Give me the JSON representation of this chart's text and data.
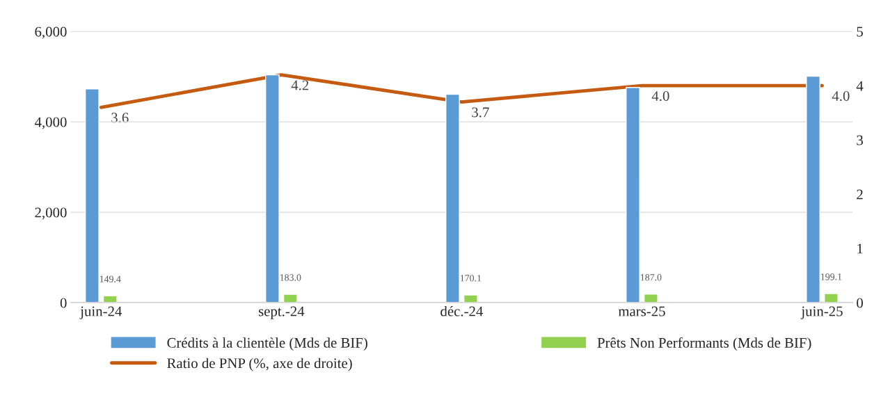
{
  "chart_data": {
    "type": "bar",
    "categories": [
      "juin-24",
      "sept.-24",
      "déc.-24",
      "mars-25",
      "juin-25"
    ],
    "series": [
      {
        "name": "Crédits à la clientèle (Mds de BIF)",
        "color": "#5b9bd5",
        "values": [
          4730,
          5040,
          4610,
          4760,
          5010
        ]
      },
      {
        "name": "Prêts Non Performants (Mds de BIF)",
        "color": "#92d050",
        "values": [
          149.4,
          183.0,
          170.1,
          187.0,
          199.1
        ],
        "value_labels": [
          "149.4",
          "183.0",
          "170.1",
          "187.0",
          "199.1"
        ]
      },
      {
        "name": "Ratio de PNP (%, axe de droite)",
        "type": "line",
        "axis": "y2",
        "color": "#c55a11",
        "values": [
          3.6,
          4.2,
          3.7,
          4.0,
          4.0
        ],
        "value_labels": [
          "3.6",
          "4.2",
          "3.7",
          "4.0",
          "4.0"
        ]
      }
    ],
    "ylim": [
      0,
      6000
    ],
    "yticks": [
      {
        "value": 0,
        "label": "0"
      },
      {
        "value": 2000,
        "label": "2,000"
      },
      {
        "value": 4000,
        "label": "4,000"
      },
      {
        "value": 6000,
        "label": "6,000"
      }
    ],
    "y2lim": [
      0,
      5
    ],
    "y2ticks": [
      0,
      1,
      2,
      3,
      4,
      5
    ],
    "grid": "y",
    "legend": "bottom"
  }
}
